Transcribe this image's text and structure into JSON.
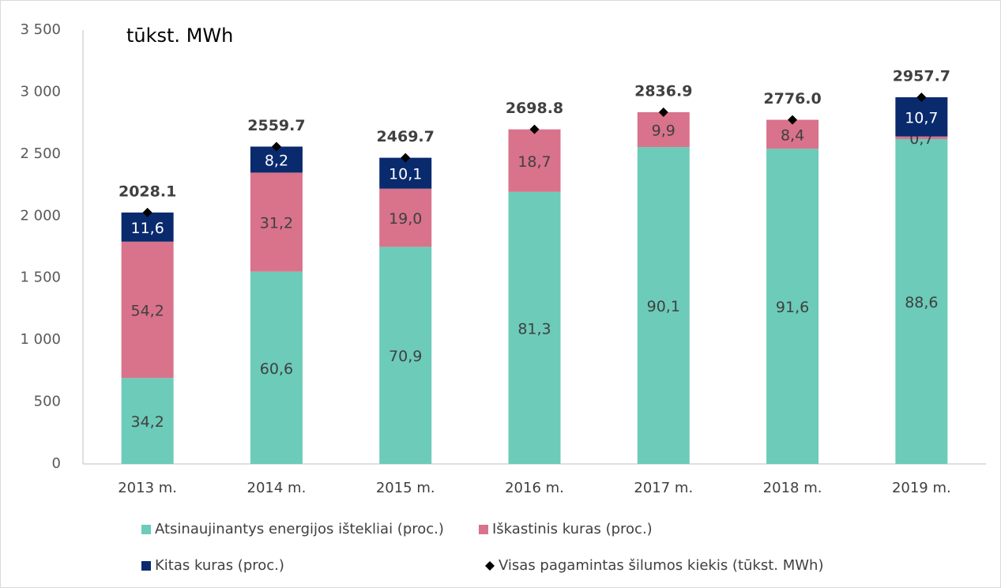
{
  "chart_data": {
    "type": "stacked_bar",
    "annotation": "tūkst. MWh",
    "categories": [
      "2013 m.",
      "2014 m.",
      "2015 m.",
      "2016 m.",
      "2017 m.",
      "2018 m.",
      "2019 m."
    ],
    "series": [
      {
        "name": "Atsinaujinantys energijos ištekliai (proc.)",
        "color": "#6ccbb9",
        "values": [
          34.2,
          60.6,
          70.9,
          81.3,
          90.1,
          91.6,
          88.6
        ],
        "value_labels": [
          "34,2",
          "60,6",
          "70,9",
          "81,3",
          "90,1",
          "91,6",
          "88,6"
        ]
      },
      {
        "name": "Iškastinis kuras (proc.)",
        "color": "#d9728b",
        "values": [
          54.2,
          31.2,
          19.0,
          18.7,
          9.9,
          8.4,
          0.7
        ],
        "value_labels": [
          "54,2",
          "31,2",
          "19,0",
          "18,7",
          "9,9",
          "8,4",
          "0,7"
        ]
      },
      {
        "name": "Kitas kuras (proc.)",
        "color": "#0a2a6e",
        "values": [
          11.6,
          8.2,
          10.1,
          null,
          null,
          null,
          10.7
        ],
        "value_labels": [
          "11,6",
          "8,2",
          "10,1",
          null,
          null,
          null,
          "10,7"
        ]
      },
      {
        "name": "Visas pagamintas šilumos kiekis (tūkst. MWh)",
        "color": "#000000",
        "marker": "diamond",
        "values": [
          2028.1,
          2559.7,
          2469.7,
          2698.8,
          2836.9,
          2776.0,
          2957.7
        ],
        "value_labels": [
          "2028.1",
          "2559.7",
          "2469.7",
          "2698.8",
          "2836.9",
          "2776.0",
          "2957.7"
        ]
      }
    ],
    "ylim": [
      0,
      3500
    ],
    "yticks": [
      0,
      500,
      {
        "value": 1000,
        "label": "1 000"
      },
      {
        "value": 1500,
        "label": "1 500"
      },
      {
        "value": 2000,
        "label": "2 000"
      },
      {
        "value": 2500,
        "label": "2 500"
      },
      {
        "value": 3000,
        "label": "3 000"
      },
      {
        "value": 3500,
        "label": "3 500"
      }
    ],
    "grid": false
  }
}
